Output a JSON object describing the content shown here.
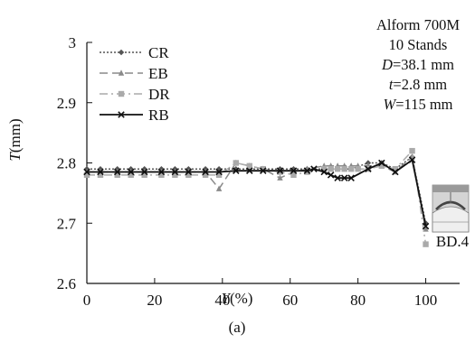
{
  "chart_data": {
    "type": "line",
    "xlabel": "Y(%)",
    "ylabel": "T(mm)",
    "xlim": [
      0,
      110
    ],
    "ylim": [
      2.6,
      3.0
    ],
    "xticks": [
      "0",
      "20",
      "40",
      "60",
      "80",
      "100"
    ],
    "yticks": [
      "2.6",
      "2.7",
      "2.8",
      "2.9",
      "3"
    ],
    "legend_position": "top-left",
    "annotation": {
      "lines": [
        "Alform 700M",
        "10 Stands",
        "D=38.1 mm",
        "t=2.8 mm",
        "W=115 mm"
      ]
    },
    "panel_label": "(a)",
    "inset_label": "BD.4",
    "series": [
      {
        "name": "CR",
        "color": "#555555",
        "marker": "diamond",
        "dash": "dotted",
        "x": [
          0,
          4,
          9,
          13,
          17,
          22,
          26,
          30,
          35,
          39,
          44,
          48,
          52,
          57,
          61,
          65,
          70,
          74,
          78,
          83,
          87,
          91,
          96,
          100
        ],
        "y": [
          2.79,
          2.79,
          2.79,
          2.79,
          2.79,
          2.79,
          2.79,
          2.79,
          2.79,
          2.79,
          2.79,
          2.79,
          2.79,
          2.79,
          2.79,
          2.79,
          2.79,
          2.79,
          2.79,
          2.8,
          2.8,
          2.79,
          2.81,
          2.7
        ]
      },
      {
        "name": "EB",
        "color": "#8a8a8a",
        "marker": "triangle",
        "dash": "dashed",
        "x": [
          0,
          4,
          9,
          13,
          17,
          22,
          26,
          30,
          35,
          39,
          44,
          48,
          52,
          57,
          61,
          65,
          70,
          72,
          74,
          76,
          78,
          80,
          83,
          87,
          91,
          96,
          100
        ],
        "y": [
          2.785,
          2.785,
          2.785,
          2.785,
          2.785,
          2.785,
          2.785,
          2.785,
          2.785,
          2.757,
          2.8,
          2.795,
          2.79,
          2.775,
          2.785,
          2.79,
          2.795,
          2.795,
          2.795,
          2.795,
          2.795,
          2.795,
          2.795,
          2.795,
          2.785,
          2.81,
          2.69
        ]
      },
      {
        "name": "DR",
        "color": "#aaaaaa",
        "marker": "square",
        "dash": "dashdot",
        "x": [
          0,
          4,
          9,
          13,
          17,
          22,
          26,
          30,
          35,
          39,
          44,
          48,
          52,
          57,
          61,
          65,
          70,
          72,
          74,
          76,
          78,
          80,
          83,
          87,
          91,
          96,
          100
        ],
        "y": [
          2.78,
          2.78,
          2.78,
          2.78,
          2.78,
          2.78,
          2.78,
          2.78,
          2.78,
          2.78,
          2.8,
          2.795,
          2.79,
          2.785,
          2.78,
          2.785,
          2.79,
          2.79,
          2.79,
          2.79,
          2.79,
          2.79,
          2.79,
          2.795,
          2.79,
          2.82,
          2.665
        ]
      },
      {
        "name": "RB",
        "color": "#111111",
        "marker": "x",
        "dash": "solid",
        "x": [
          0,
          4,
          9,
          13,
          17,
          22,
          26,
          30,
          35,
          39,
          44,
          48,
          52,
          57,
          61,
          65,
          67,
          70,
          72,
          74,
          76,
          78,
          83,
          87,
          91,
          96,
          100
        ],
        "y": [
          2.785,
          2.785,
          2.785,
          2.785,
          2.785,
          2.785,
          2.785,
          2.785,
          2.785,
          2.785,
          2.787,
          2.787,
          2.787,
          2.787,
          2.787,
          2.787,
          2.79,
          2.785,
          2.78,
          2.775,
          2.775,
          2.775,
          2.79,
          2.8,
          2.785,
          2.805,
          2.695
        ]
      }
    ]
  }
}
